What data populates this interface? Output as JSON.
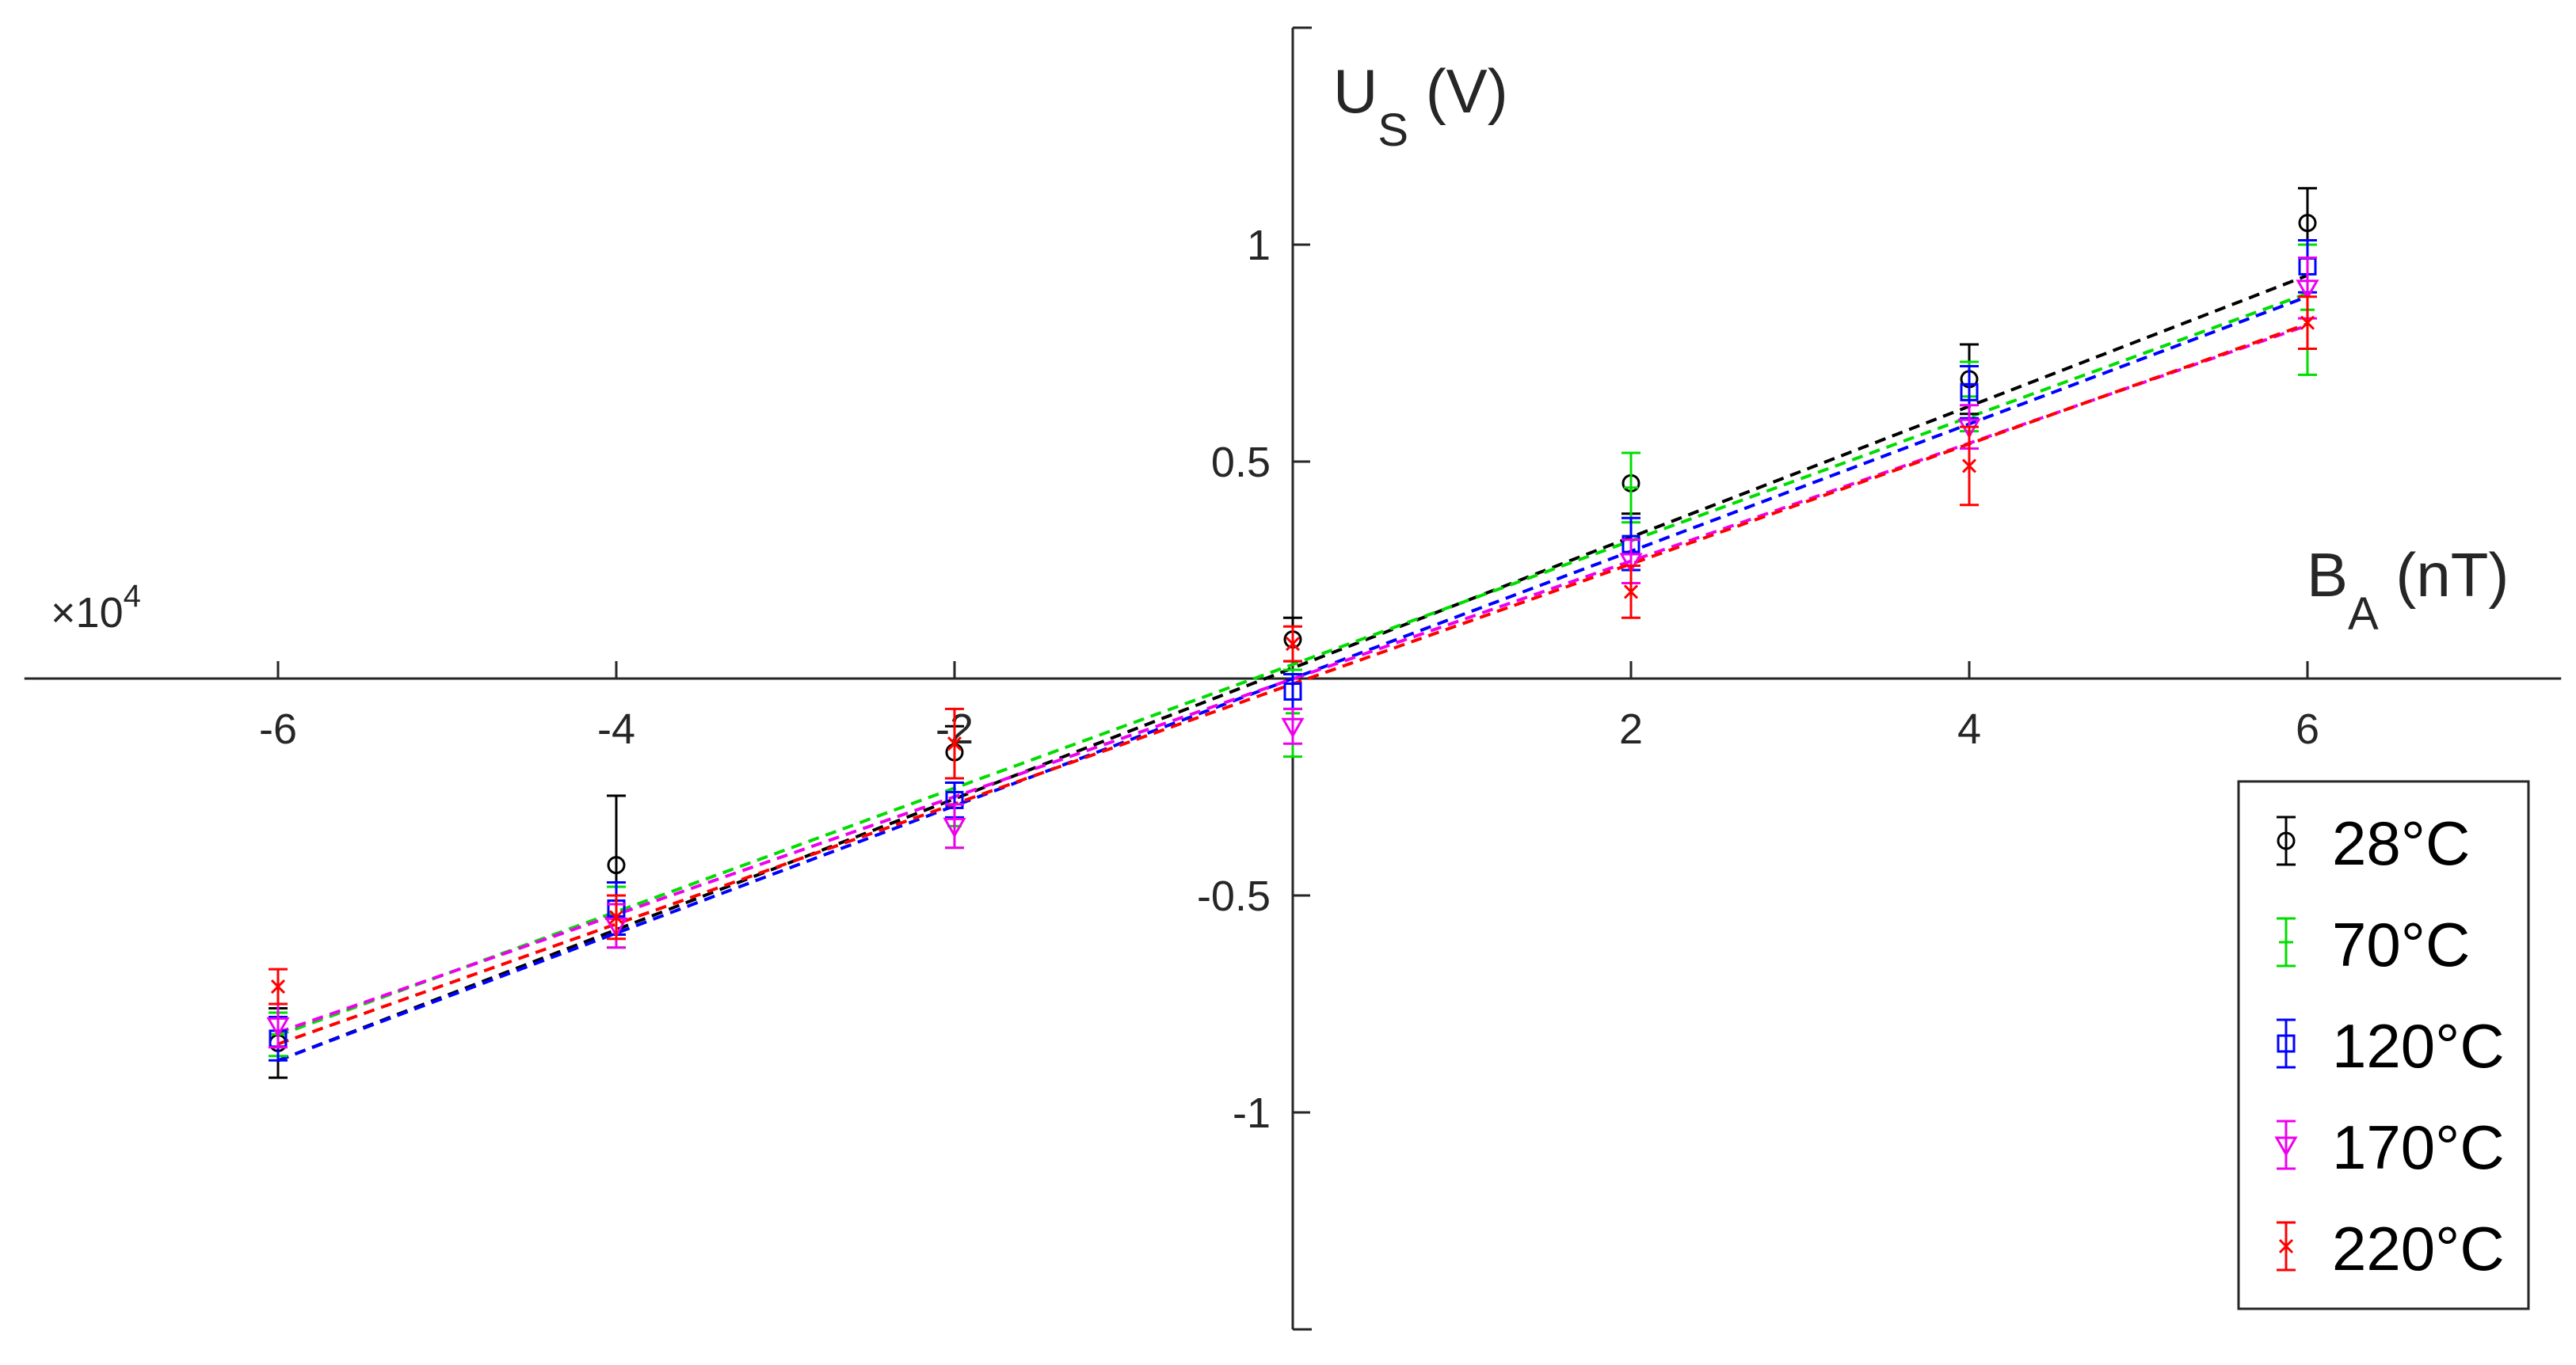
{
  "chart_data": {
    "type": "scatter",
    "title": "",
    "xlabel": {
      "main": "B",
      "sub": "A",
      "unit": " (nT)"
    },
    "ylabel": {
      "main": "U",
      "sub": "S",
      "unit": " (V)"
    },
    "y_exponent_label": "×10",
    "y_exponent_power": "4",
    "y_multiplier": 10000,
    "xlim": [
      -7.5,
      7.5
    ],
    "ylim": [
      -1.5,
      1.5
    ],
    "x_ticks": [
      -6,
      -4,
      -2,
      2,
      4,
      6
    ],
    "x_tick_labels": [
      "-6",
      "-4",
      "-2",
      "2",
      "4",
      "6"
    ],
    "y_ticks": [
      1,
      0.5,
      -0.5,
      -1
    ],
    "y_tick_labels": [
      "1",
      "0.5",
      "-0.5",
      "-1"
    ],
    "axes_through_origin": true,
    "grid": false,
    "legend_position": "bottom-right",
    "x": [
      -6,
      -4,
      -2,
      0,
      2,
      4,
      6
    ],
    "series": [
      {
        "name": "28",
        "unit": "°C",
        "color": "#000000",
        "marker": "circle",
        "values": [
          -0.84,
          -0.43,
          -0.17,
          0.09,
          0.45,
          0.69,
          1.05
        ],
        "errors": [
          0.08,
          0.16,
          0.06,
          0.05,
          0.07,
          0.08,
          0.08
        ],
        "fit": {
          "slope": 0.1508,
          "intercept": 0.0243
        }
      },
      {
        "name": "70",
        "unit": "°C",
        "color": "#00dd00",
        "marker": "plus",
        "values": [
          -0.82,
          -0.55,
          -0.34,
          -0.08,
          0.44,
          0.65,
          0.85
        ],
        "errors": [
          0.05,
          0.07,
          0.05,
          0.1,
          0.08,
          0.08,
          0.15
        ],
        "fit": {
          "slope": 0.1425,
          "intercept": 0.0325
        }
      },
      {
        "name": "120",
        "unit": "°C",
        "color": "#0000ff",
        "marker": "square",
        "values": [
          -0.83,
          -0.53,
          -0.28,
          -0.03,
          0.31,
          0.66,
          0.95
        ],
        "errors": [
          0.05,
          0.06,
          0.04,
          0.04,
          0.06,
          0.06,
          0.06
        ],
        "fit": {
          "slope": 0.1467,
          "intercept": 0.0
        }
      },
      {
        "name": "170",
        "unit": "°C",
        "color": "#ee00ee",
        "marker": "triangle-down",
        "values": [
          -0.8,
          -0.57,
          -0.34,
          -0.11,
          0.27,
          0.58,
          0.9
        ],
        "errors": [
          0.05,
          0.05,
          0.05,
          0.04,
          0.05,
          0.05,
          0.07
        ],
        "fit": {
          "slope": 0.1358,
          "intercept": -0.0008
        }
      },
      {
        "name": "220",
        "unit": "°C",
        "color": "#ff0000",
        "marker": "x",
        "values": [
          -0.71,
          -0.55,
          -0.15,
          0.08,
          0.2,
          0.49,
          0.82
        ],
        "errors": [
          0.04,
          0.05,
          0.08,
          0.04,
          0.06,
          0.09,
          0.06
        ],
        "fit": {
          "slope": 0.1383,
          "intercept": -0.0125
        }
      }
    ]
  }
}
